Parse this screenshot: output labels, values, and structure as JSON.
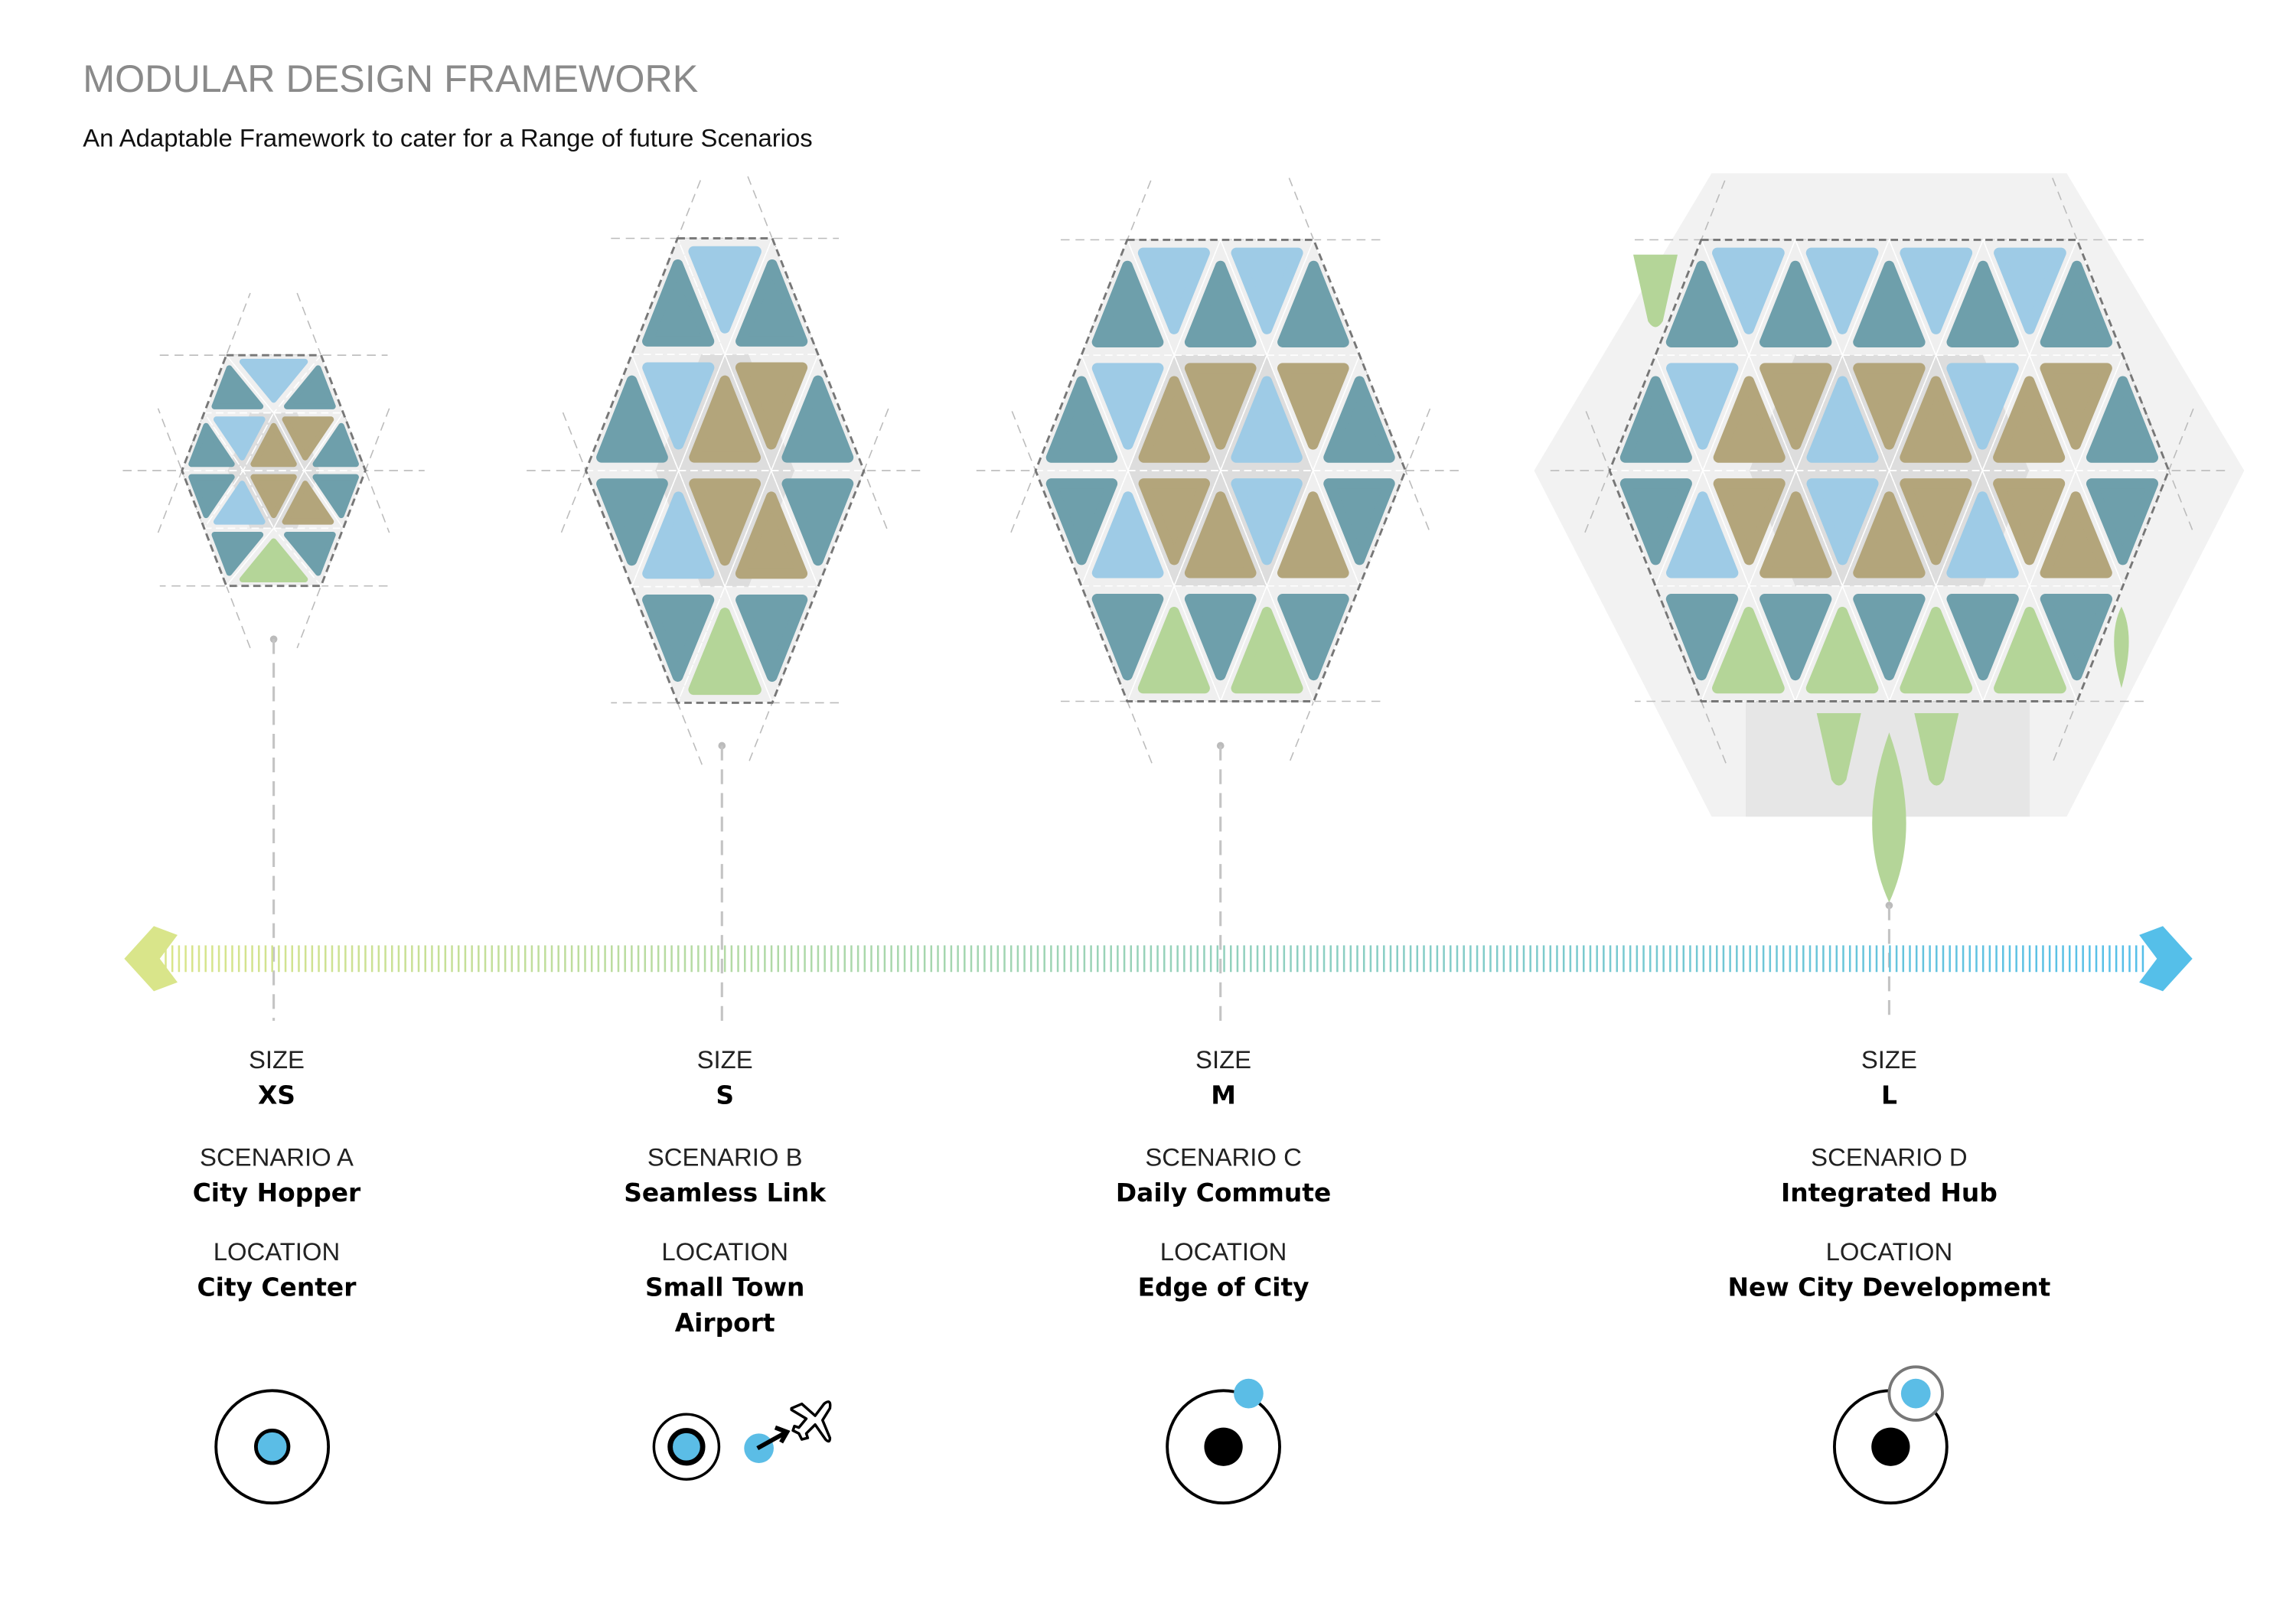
{
  "header": {
    "title": "MODULAR DESIGN FRAMEWORK",
    "subtitle": "An Adaptable Framework to cater for a Range of future Scenarios"
  },
  "palette": {
    "teal": "#6e9fab",
    "olive": "#b3a57b",
    "light_blue": "#9ecbe6",
    "green": "#b4d598",
    "panel": "#efefef",
    "panel_dark": "#dddddd",
    "scale_start": "#d9e58a",
    "scale_end": "#55bfe9",
    "marker_blue": "#5bbde6"
  },
  "scale": {
    "start_icon": "chevron-left-arrow",
    "end_icon": "chevron-right-arrow"
  },
  "scenarios": [
    {
      "size_label": "SIZE",
      "size": "XS",
      "scenario_label": "SCENARIO A",
      "scenario": "City Hopper",
      "location_label": "LOCATION",
      "location": [
        "City Center"
      ],
      "icon": "city-center-target-icon"
    },
    {
      "size_label": "SIZE",
      "size": "S",
      "scenario_label": "SCENARIO B",
      "scenario": "Seamless Link",
      "location_label": "LOCATION",
      "location": [
        "Small Town",
        "Airport"
      ],
      "icon": "airport-link-icon"
    },
    {
      "size_label": "SIZE",
      "size": "M",
      "scenario_label": "SCENARIO C",
      "scenario": "Daily Commute",
      "location_label": "LOCATION",
      "location": [
        "Edge of City"
      ],
      "icon": "edge-of-city-icon"
    },
    {
      "size_label": "SIZE",
      "size": "L",
      "scenario_label": "SCENARIO D",
      "scenario": "Integrated Hub",
      "location_label": "LOCATION",
      "location": [
        "New City Development"
      ],
      "icon": "new-development-icon"
    }
  ]
}
